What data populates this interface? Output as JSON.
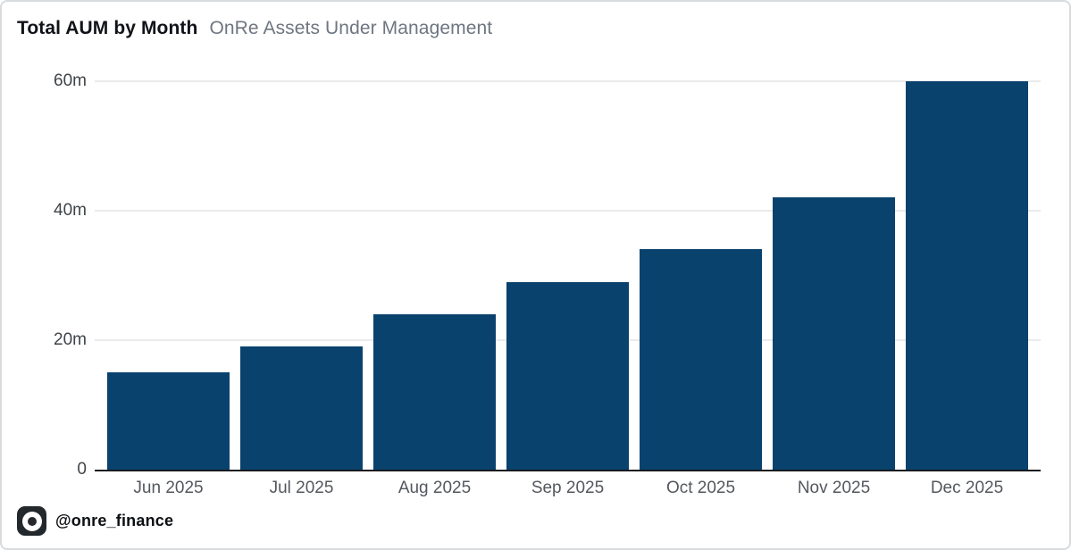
{
  "header": {
    "title": "Total AUM by Month",
    "subtitle": "OnRe Assets Under Management"
  },
  "footer": {
    "handle": "@onre_finance",
    "logo_icon": "onre-logo-icon"
  },
  "colors": {
    "bar": "#0a426e",
    "axis_line": "#17191d",
    "gridline": "#ebebed",
    "title_text": "#111318",
    "subtitle_text": "#6e7681",
    "tick_text": "#3f4449",
    "border": "#d8dbde",
    "background": "#ffffff",
    "logo_background": "#22282c"
  },
  "chart_data": {
    "type": "bar",
    "title": "Total AUM by Month",
    "subtitle": "OnRe Assets Under Management",
    "categories": [
      "Jun 2025",
      "Jul 2025",
      "Aug 2025",
      "Sep 2025",
      "Oct 2025",
      "Nov 2025",
      "Dec 2025"
    ],
    "values": [
      15,
      19,
      24,
      29,
      34,
      42,
      60
    ],
    "unit": "m",
    "xlabel": "",
    "ylabel": "",
    "ylim": [
      0,
      60
    ],
    "yticks": [
      {
        "value": 0,
        "label": "0"
      },
      {
        "value": 20,
        "label": "20m"
      },
      {
        "value": 40,
        "label": "40m"
      },
      {
        "value": 60,
        "label": "60m"
      }
    ],
    "grid": "horizontal",
    "legend": "none",
    "bar_color": "#0a426e"
  }
}
